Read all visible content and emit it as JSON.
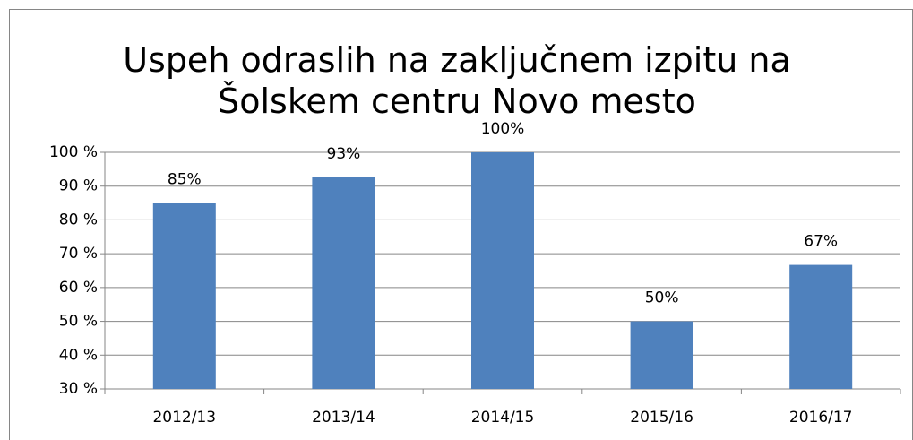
{
  "chart_data": {
    "type": "bar",
    "title": "Uspeh odraslih na zaključnem izpitu na Šolskem centru Novo mesto",
    "categories": [
      "2012/13",
      "2013/14",
      "2014/15",
      "2015/16",
      "2016/17"
    ],
    "values": [
      85,
      92.6,
      100,
      50,
      66.7
    ],
    "value_labels": [
      "85%",
      "93%",
      "100%",
      "50%",
      "67%"
    ],
    "color": "#4f81bd",
    "ylim": [
      30,
      100
    ],
    "yticks": [
      {
        "value": 30,
        "label": "30 %"
      },
      {
        "value": 40,
        "label": "40 %"
      },
      {
        "value": 50,
        "label": "50 %"
      },
      {
        "value": 60,
        "label": "60 %"
      },
      {
        "value": 70,
        "label": "70 %"
      },
      {
        "value": 80,
        "label": "80 %"
      },
      {
        "value": 90,
        "label": "90 %"
      },
      {
        "value": 100,
        "label": "100 %"
      }
    ],
    "grid": true
  }
}
